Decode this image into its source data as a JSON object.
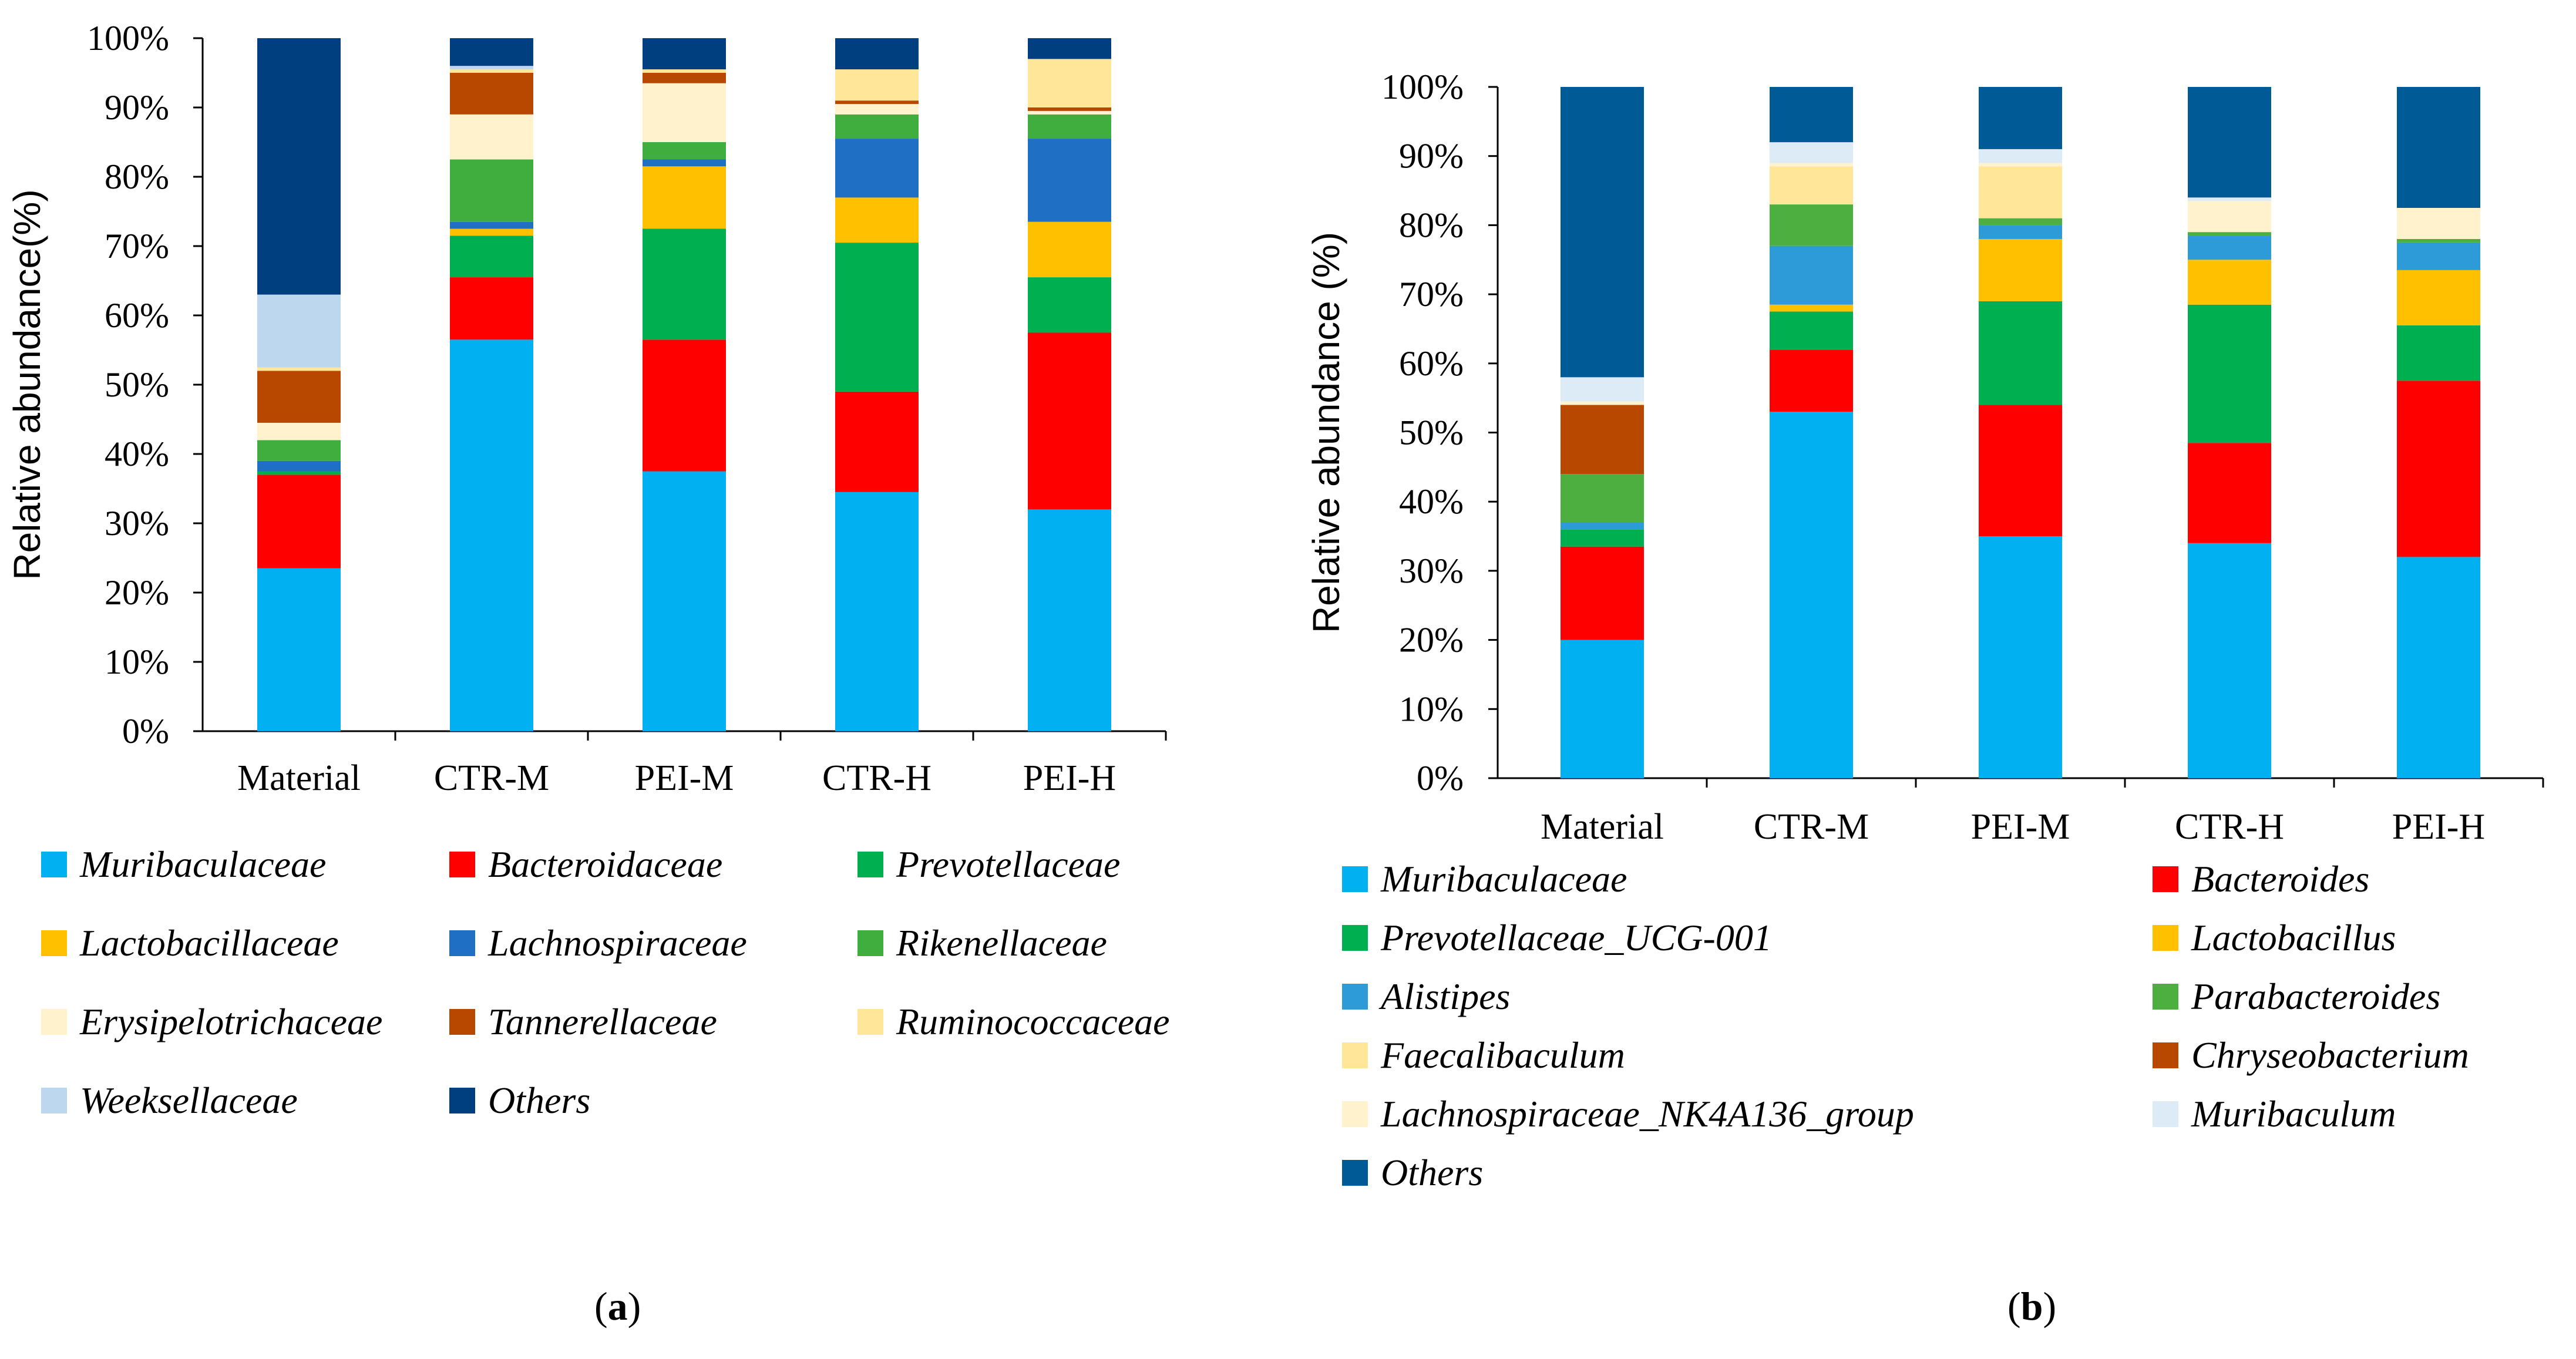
{
  "figure": {
    "panel_a_label": "a",
    "panel_b_label": "b"
  },
  "chart_data": [
    {
      "type": "bar",
      "stacked": true,
      "panel": "a",
      "title": "",
      "xlabel": "",
      "ylabel": "Relative abundance(%)",
      "ylim": [
        0,
        100
      ],
      "yticks": [
        "0%",
        "10%",
        "20%",
        "30%",
        "40%",
        "50%",
        "60%",
        "70%",
        "80%",
        "90%",
        "100%"
      ],
      "categories": [
        "Material",
        "CTR-M",
        "PEI-M",
        "CTR-H",
        "PEI-H"
      ],
      "legend_position": "bottom",
      "series": [
        {
          "name": "Muribaculaceae",
          "color": "#00B0F0",
          "values": [
            23.5,
            56.5,
            37.5,
            34.5,
            32.0
          ]
        },
        {
          "name": "Bacteroidaceae",
          "color": "#FF0000",
          "values": [
            13.5,
            9.0,
            19.0,
            14.5,
            25.5
          ]
        },
        {
          "name": "Prevotellaceae",
          "color": "#00B050",
          "values": [
            0.5,
            6.0,
            16.0,
            21.5,
            8.0
          ]
        },
        {
          "name": "Lactobacillaceae",
          "color": "#FFC000",
          "values": [
            0.0,
            1.0,
            9.0,
            6.5,
            8.0
          ]
        },
        {
          "name": "Lachnospiraceae",
          "color": "#1F6FC5",
          "values": [
            1.5,
            1.0,
            1.0,
            8.5,
            12.0
          ]
        },
        {
          "name": "Rikenellaceae",
          "color": "#3FAE3F",
          "values": [
            3.0,
            9.0,
            2.5,
            3.5,
            3.5
          ]
        },
        {
          "name": "Erysipelotrichaceae",
          "color": "#FFF2CC",
          "values": [
            2.5,
            6.5,
            8.5,
            1.5,
            0.5
          ]
        },
        {
          "name": "Tannerellaceae",
          "color": "#B84700",
          "values": [
            7.5,
            6.0,
            1.5,
            0.5,
            0.5
          ]
        },
        {
          "name": "Ruminococcaceae",
          "color": "#FFE699",
          "values": [
            0.5,
            0.5,
            0.5,
            4.5,
            7.0
          ]
        },
        {
          "name": "Weeksellaceae",
          "color": "#BDD7EE",
          "values": [
            10.5,
            0.5,
            0.0,
            0.0,
            0.0
          ]
        },
        {
          "name": "Others",
          "color": "#003F7F",
          "values": [
            37.0,
            4.0,
            4.5,
            4.5,
            3.0
          ]
        }
      ]
    },
    {
      "type": "bar",
      "stacked": true,
      "panel": "b",
      "title": "",
      "xlabel": "",
      "ylabel": "Relative abundance (%)",
      "ylim": [
        0,
        100
      ],
      "yticks": [
        "0%",
        "10%",
        "20%",
        "30%",
        "40%",
        "50%",
        "60%",
        "70%",
        "80%",
        "90%",
        "100%"
      ],
      "categories": [
        "Material",
        "CTR-M",
        "PEI-M",
        "CTR-H",
        "PEI-H"
      ],
      "legend_position": "bottom",
      "series": [
        {
          "name": "Muribaculaceae",
          "color": "#00B0F0",
          "values": [
            20.0,
            53.0,
            35.0,
            34.0,
            32.0
          ]
        },
        {
          "name": "Bacteroides",
          "color": "#FF0000",
          "values": [
            13.5,
            9.0,
            19.0,
            14.5,
            25.5
          ]
        },
        {
          "name": "Prevotellaceae_UCG-001",
          "color": "#00B050",
          "values": [
            2.5,
            5.5,
            15.0,
            20.0,
            8.0
          ]
        },
        {
          "name": "Lactobacillus",
          "color": "#FFC000",
          "values": [
            0.0,
            1.0,
            9.0,
            6.5,
            8.0
          ]
        },
        {
          "name": "Alistipes",
          "color": "#2E9BD9",
          "values": [
            1.0,
            8.5,
            2.0,
            3.5,
            4.0
          ]
        },
        {
          "name": "Parabacteroides",
          "color": "#4CAF3F",
          "values": [
            7.0,
            6.0,
            1.0,
            0.5,
            0.5
          ]
        },
        {
          "name": "Faecalibaculum",
          "color": "#FFE699",
          "values": [
            0.0,
            5.5,
            7.5,
            0.0,
            0.0
          ]
        },
        {
          "name": "Chryseobacterium",
          "color": "#B84700",
          "values": [
            10.0,
            0.0,
            0.0,
            0.0,
            0.0
          ]
        },
        {
          "name": "Lachnospiraceae_NK4A136_group",
          "color": "#FFF2CC",
          "values": [
            0.5,
            0.5,
            0.5,
            4.5,
            4.5
          ]
        },
        {
          "name": "Muribaculum",
          "color": "#DDEBF7",
          "values": [
            3.5,
            3.0,
            2.0,
            0.5,
            0.0
          ]
        },
        {
          "name": "Others",
          "color": "#005A96",
          "values": [
            42.0,
            8.0,
            9.0,
            16.0,
            17.5
          ]
        }
      ]
    }
  ]
}
